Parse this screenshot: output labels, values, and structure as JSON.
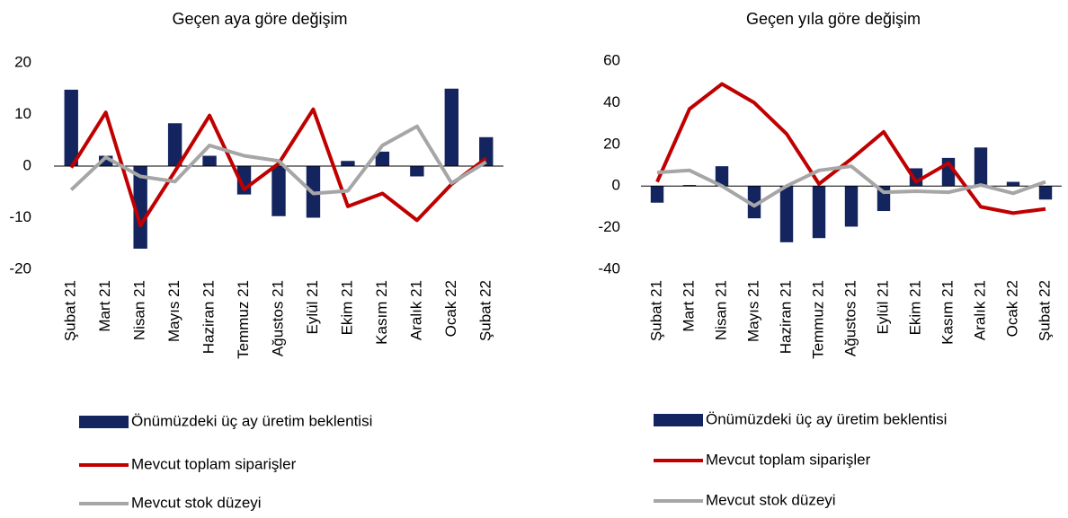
{
  "chart_data": [
    {
      "type": "bar-line",
      "title": "Geçen aya göre değişim",
      "categories": [
        "Şubat 21",
        "Mart 21",
        "Nisan 21",
        "Mayıs 21",
        "Haziran 21",
        "Temmuz 21",
        "Ağustos 21",
        "Eylül 21",
        "Ekim 21",
        "Kasım 21",
        "Aralık 21",
        "Ocak 22",
        "Şubat 22"
      ],
      "series": [
        {
          "name": "Önümüzdeki üç ay üretim beklentisi",
          "kind": "bar",
          "color": "#14245e",
          "values": [
            14.8,
            2,
            -16,
            8.3,
            2,
            -5.5,
            -9.7,
            -10,
            1,
            2.8,
            -2,
            15,
            5.6
          ]
        },
        {
          "name": "Mevcut toplam siparişler",
          "kind": "line",
          "color": "#c00000",
          "values": [
            -0.3,
            10.4,
            -11.5,
            -1,
            9.8,
            -4.5,
            0.5,
            11,
            -7.8,
            -5.3,
            -10.5,
            -3.5,
            1.5
          ]
        },
        {
          "name": "Mevcut stok düzeyi",
          "kind": "line",
          "color": "#a6a6a6",
          "values": [
            -4.6,
            1.7,
            -2,
            -3,
            4,
            2,
            1,
            -5.3,
            -4.8,
            4,
            7.7,
            -3.3,
            0.8
          ]
        }
      ],
      "ylim": [
        -20,
        20
      ],
      "yticks": [
        -20,
        -10,
        0,
        10,
        20
      ]
    },
    {
      "type": "bar-line",
      "title": "Geçen yıla göre değişim",
      "categories": [
        "Şubat 21",
        "Mart 21",
        "Nisan 21",
        "Mayıs 21",
        "Haziran 21",
        "Temmuz 21",
        "Ağustos 21",
        "Eylül 21",
        "Ekim 21",
        "Kasım 21",
        "Aralık 21",
        "Ocak 22",
        "Şubat 22"
      ],
      "series": [
        {
          "name": "Önümüzdeki üç ay üretim beklentisi",
          "kind": "bar",
          "color": "#14245e",
          "values": [
            -8,
            0.5,
            9.5,
            -15.5,
            -27,
            -25,
            -19.5,
            -12,
            8.5,
            13.5,
            18.5,
            2,
            -6.5
          ]
        },
        {
          "name": "Mevcut toplam siparişler",
          "kind": "line",
          "color": "#c00000",
          "values": [
            2,
            37,
            49,
            40,
            25,
            1,
            13,
            26,
            2,
            11,
            -10,
            -13,
            -11
          ]
        },
        {
          "name": "Mevcut stok düzeyi",
          "kind": "line",
          "color": "#a6a6a6",
          "values": [
            6.5,
            7.5,
            0,
            -9.5,
            0,
            7.5,
            9.5,
            -3,
            -2.5,
            -3,
            0.5,
            -3.5,
            2
          ]
        }
      ],
      "ylim": [
        -40,
        60
      ],
      "yticks": [
        -40,
        -20,
        0,
        20,
        40,
        60
      ]
    }
  ]
}
